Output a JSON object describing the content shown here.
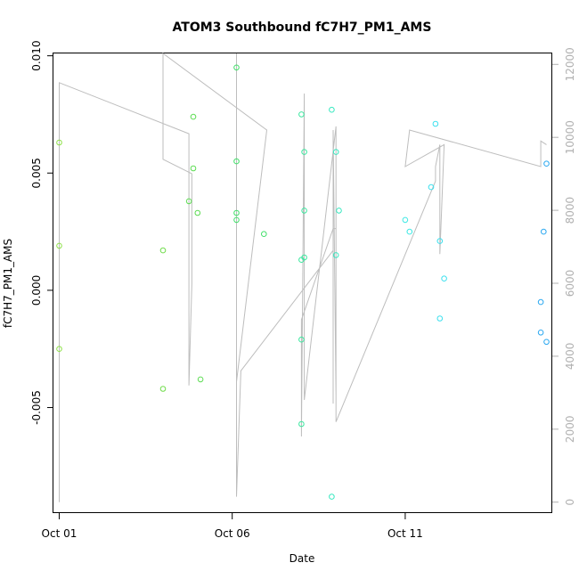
{
  "chart_data": {
    "type": "scatter",
    "title": "ATOM3 Southbound fC7H7_PM1_AMS",
    "xlabel": "Date",
    "ylabel": "fC7H7_PM1_AMS",
    "xlim": [
      "2017-09-30T20:00",
      "2017-10-15T06:00"
    ],
    "ylim": [
      -0.0095,
      0.0101
    ],
    "x_ticks": [
      {
        "x": "2017-10-01T00:00",
        "label": "Oct 01"
      },
      {
        "x": "2017-10-06T00:00",
        "label": "Oct 06"
      },
      {
        "x": "2017-10-11T00:00",
        "label": "Oct 11"
      }
    ],
    "y_ticks": [
      {
        "y": -0.005,
        "label": "-0.005"
      },
      {
        "y": 0.0,
        "label": "0.000"
      },
      {
        "y": 0.005,
        "label": "0.005"
      },
      {
        "y": 0.01,
        "label": "0.010"
      }
    ],
    "secondary_axis": {
      "ylim": [
        -300,
        12300
      ],
      "ticks": [
        {
          "y": 0,
          "label": "0"
        },
        {
          "y": 2000,
          "label": "2000"
        },
        {
          "y": 4000,
          "label": "4000"
        },
        {
          "y": 6000,
          "label": "6000"
        },
        {
          "y": 8000,
          "label": "8000"
        },
        {
          "y": 10000,
          "label": "10000"
        },
        {
          "y": 12000,
          "label": "12000"
        }
      ]
    },
    "points": [
      {
        "x": "2017-10-01T00:00",
        "y": 0.0063,
        "color": "#8fe04a"
      },
      {
        "x": "2017-10-01T00:00",
        "y": 0.0019,
        "color": "#8fe04a"
      },
      {
        "x": "2017-10-01T00:00",
        "y": -0.0025,
        "color": "#8fe04a"
      },
      {
        "x": "2017-10-04T00:00",
        "y": 0.0017,
        "color": "#6fdc4a"
      },
      {
        "x": "2017-10-04T00:00",
        "y": -0.0042,
        "color": "#6fdc4a"
      },
      {
        "x": "2017-10-04T18:00",
        "y": 0.0038,
        "color": "#5cdc52"
      },
      {
        "x": "2017-10-04T21:00",
        "y": 0.0074,
        "color": "#5cdc52"
      },
      {
        "x": "2017-10-04T21:00",
        "y": 0.0052,
        "color": "#5cdc52"
      },
      {
        "x": "2017-10-05T00:00",
        "y": 0.0033,
        "color": "#5cdc52"
      },
      {
        "x": "2017-10-05T02:00",
        "y": -0.0038,
        "color": "#5cdc52"
      },
      {
        "x": "2017-10-06T03:00",
        "y": 0.0095,
        "color": "#42df6a"
      },
      {
        "x": "2017-10-06T03:00",
        "y": 0.0055,
        "color": "#42df6a"
      },
      {
        "x": "2017-10-06T03:00",
        "y": 0.0033,
        "color": "#42df6a"
      },
      {
        "x": "2017-10-06T03:00",
        "y": 0.003,
        "color": "#42df6a"
      },
      {
        "x": "2017-10-06T22:00",
        "y": 0.0024,
        "color": "#42df6a"
      },
      {
        "x": "2017-10-08T00:00",
        "y": 0.0075,
        "color": "#3ce8a0"
      },
      {
        "x": "2017-10-08T02:00",
        "y": 0.0059,
        "color": "#3ce8a0"
      },
      {
        "x": "2017-10-08T02:00",
        "y": 0.0034,
        "color": "#3ce8a0"
      },
      {
        "x": "2017-10-08T00:00",
        "y": 0.0013,
        "color": "#3ce8a0"
      },
      {
        "x": "2017-10-08T02:00",
        "y": 0.0014,
        "color": "#3ce8a0"
      },
      {
        "x": "2017-10-08T00:00",
        "y": -0.0021,
        "color": "#3ce8a0"
      },
      {
        "x": "2017-10-08T00:00",
        "y": -0.0057,
        "color": "#3ce8a0"
      },
      {
        "x": "2017-10-08T21:00",
        "y": 0.0077,
        "color": "#38e8c0"
      },
      {
        "x": "2017-10-09T00:00",
        "y": 0.0059,
        "color": "#38e8c0"
      },
      {
        "x": "2017-10-09T02:00",
        "y": 0.0034,
        "color": "#38e8c0"
      },
      {
        "x": "2017-10-09T00:00",
        "y": 0.0015,
        "color": "#38e8c0"
      },
      {
        "x": "2017-10-08T21:00",
        "y": -0.0088,
        "color": "#38e8c0"
      },
      {
        "x": "2017-10-11T00:00",
        "y": 0.003,
        "color": "#3ce8e4"
      },
      {
        "x": "2017-10-11T03:00",
        "y": 0.0025,
        "color": "#3ce8e4"
      },
      {
        "x": "2017-10-11T18:00",
        "y": 0.0044,
        "color": "#3ce0ee"
      },
      {
        "x": "2017-10-11T21:00",
        "y": 0.0071,
        "color": "#3ce0ee"
      },
      {
        "x": "2017-10-12T00:00",
        "y": 0.0021,
        "color": "#3ce0ee"
      },
      {
        "x": "2017-10-12T03:00",
        "y": 0.0005,
        "color": "#3ce0ee"
      },
      {
        "x": "2017-10-12T00:00",
        "y": -0.0012,
        "color": "#3ce0ee"
      },
      {
        "x": "2017-10-14T22:00",
        "y": -0.0005,
        "color": "#2aa8f0"
      },
      {
        "x": "2017-10-15T00:00",
        "y": 0.0025,
        "color": "#2aa8f0"
      },
      {
        "x": "2017-10-14T22:00",
        "y": -0.0018,
        "color": "#2aa8f0"
      },
      {
        "x": "2017-10-15T02:00",
        "y": -0.0022,
        "color": "#2aa8f0"
      },
      {
        "x": "2017-10-15T02:00",
        "y": 0.0054,
        "color": "#2aa8f0"
      }
    ],
    "altitude_trace": [
      {
        "x": "2017-10-01T00:00",
        "y": 0
      },
      {
        "x": "2017-10-01T00:00",
        "y": 11500
      },
      {
        "x": "2017-10-04T18:00",
        "y": 10100
      },
      {
        "x": "2017-10-04T18:00",
        "y": 3200
      },
      {
        "x": "2017-10-04T20:00",
        "y": 6000
      },
      {
        "x": "2017-10-04T20:00",
        "y": 9000
      },
      {
        "x": "2017-10-04T00:00",
        "y": 9400
      },
      {
        "x": "2017-10-04T00:00",
        "y": 12300
      },
      {
        "x": "2017-10-07T00:00",
        "y": 10200
      },
      {
        "x": "2017-10-06T03:00",
        "y": 3300
      },
      {
        "x": "2017-10-06T03:00",
        "y": 12300
      },
      {
        "x": "2017-10-06T03:00",
        "y": 150
      },
      {
        "x": "2017-10-06T06:00",
        "y": 3600
      },
      {
        "x": "2017-10-08T22:00",
        "y": 6900
      },
      {
        "x": "2017-10-08T22:00",
        "y": 2700
      },
      {
        "x": "2017-10-08T22:00",
        "y": 10200
      },
      {
        "x": "2017-10-09T00:00",
        "y": 2900
      },
      {
        "x": "2017-10-09T00:00",
        "y": 10300
      },
      {
        "x": "2017-10-08T02:00",
        "y": 2800
      },
      {
        "x": "2017-10-08T02:00",
        "y": 11200
      },
      {
        "x": "2017-10-08T00:00",
        "y": 1800
      },
      {
        "x": "2017-10-08T00:00",
        "y": 5000
      },
      {
        "x": "2017-10-08T22:00",
        "y": 7500
      },
      {
        "x": "2017-10-09T00:00",
        "y": 7500
      },
      {
        "x": "2017-10-09T00:00",
        "y": 2200
      },
      {
        "x": "2017-10-11T21:00",
        "y": 8800
      },
      {
        "x": "2017-10-11T21:00",
        "y": 9200
      },
      {
        "x": "2017-10-12T00:00",
        "y": 9800
      },
      {
        "x": "2017-10-12T00:00",
        "y": 6800
      },
      {
        "x": "2017-10-12T03:00",
        "y": 9800
      },
      {
        "x": "2017-10-11T00:00",
        "y": 9200
      },
      {
        "x": "2017-10-11T03:00",
        "y": 10200
      },
      {
        "x": "2017-10-14T22:00",
        "y": 9200
      },
      {
        "x": "2017-10-14T22:00",
        "y": 9900
      },
      {
        "x": "2017-10-15T02:00",
        "y": 9800
      }
    ]
  }
}
